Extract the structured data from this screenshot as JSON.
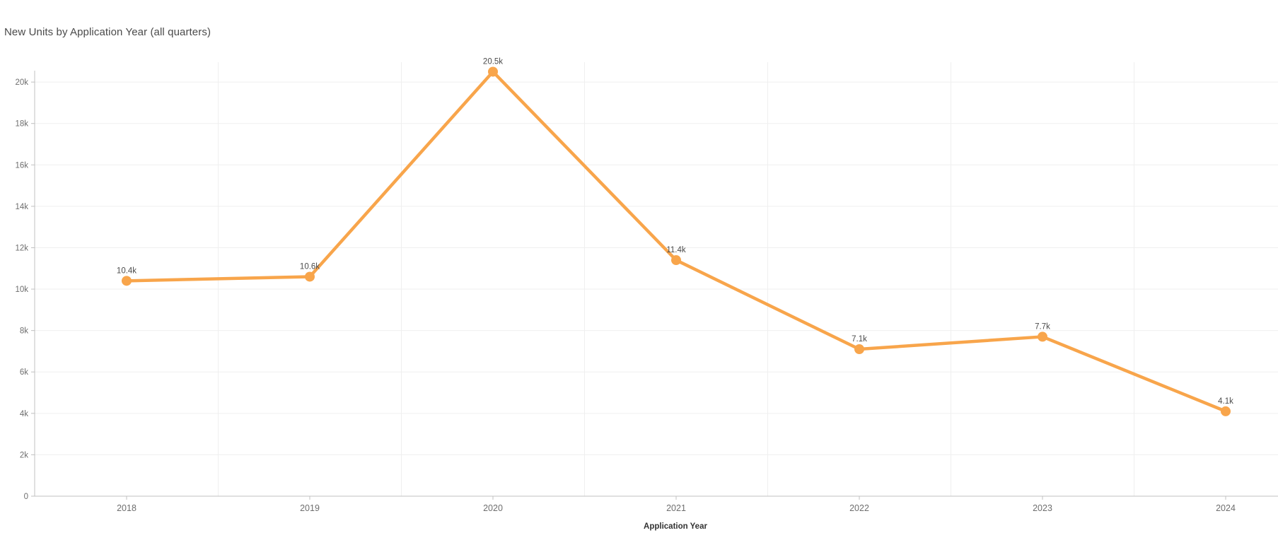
{
  "chart_data": {
    "type": "line",
    "title": "New Units by Application Year (all quarters)",
    "xlabel": "Application Year",
    "ylabel": "",
    "categories": [
      "2018",
      "2019",
      "2020",
      "2021",
      "2022",
      "2023",
      "2024"
    ],
    "series": [
      {
        "name": "New Units",
        "values": [
          10400,
          10600,
          20500,
          11400,
          7100,
          7700,
          4100
        ],
        "point_labels": [
          "10.4k",
          "10.6k",
          "20.5k",
          "11.4k",
          "7.1k",
          "7.7k",
          "4.1k"
        ]
      }
    ],
    "y_ticks": [
      {
        "value": 0,
        "label": "0"
      },
      {
        "value": 2000,
        "label": "2k"
      },
      {
        "value": 4000,
        "label": "4k"
      },
      {
        "value": 6000,
        "label": "6k"
      },
      {
        "value": 8000,
        "label": "8k"
      },
      {
        "value": 10000,
        "label": "10k"
      },
      {
        "value": 12000,
        "label": "12k"
      },
      {
        "value": 14000,
        "label": "14k"
      },
      {
        "value": 16000,
        "label": "16k"
      },
      {
        "value": 18000,
        "label": "18k"
      },
      {
        "value": 20000,
        "label": "20k"
      }
    ],
    "ylim": [
      0,
      20550
    ],
    "grid": "on",
    "legend": "none",
    "colors": {
      "line": "#f8a54b",
      "point": "#f8a54b",
      "title_text": "#4a4a4a",
      "tick_text": "#6e6e6e",
      "point_label_text": "#4c4c4c",
      "axis_line": "#c0c0c0",
      "gridline": "#efefef",
      "background": "#ffffff"
    }
  }
}
